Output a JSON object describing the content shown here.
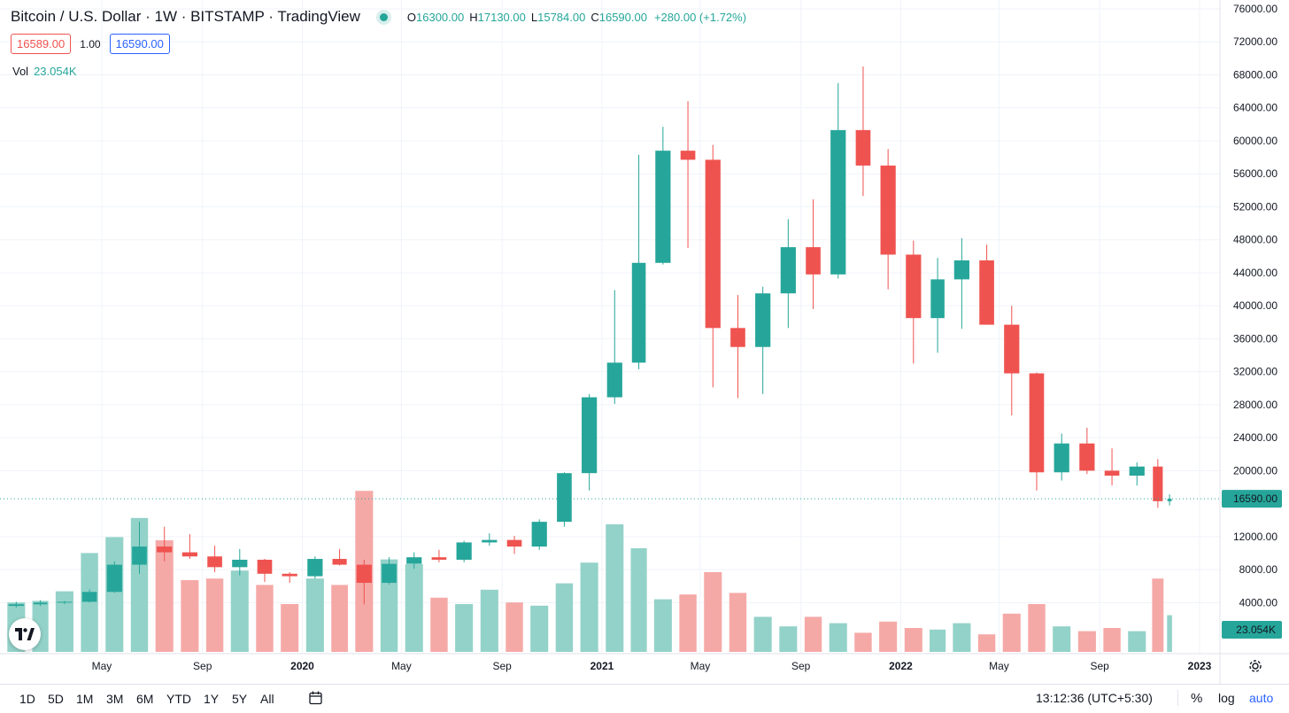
{
  "header": {
    "symbol_title": "Bitcoin / U.S. Dollar · 1W · BITSTAMP · TradingView",
    "ohlc": {
      "o_label": "O",
      "o": "16300.00",
      "h_label": "H",
      "h": "17130.00",
      "l_label": "L",
      "l": "15784.00",
      "c_label": "C",
      "c": "16590.00"
    },
    "change": "+280.00 (+1.72%)",
    "sell_price": "16589.00",
    "spread": "1.00",
    "buy_price": "16590.00",
    "vol_label": "Vol",
    "vol_value": "23.054K"
  },
  "price_tag": "16590.00",
  "volume_tag": "23.054K",
  "colors": {
    "up": "#26a69a",
    "down": "#ef5350",
    "vol_up": "#93d2c9",
    "vol_down": "#f5a9a7",
    "grid": "#f0f3fa",
    "accent": "#2962ff"
  },
  "bottom_bar": {
    "ranges": [
      "1D",
      "5D",
      "1M",
      "3M",
      "6M",
      "YTD",
      "1Y",
      "5Y",
      "All"
    ],
    "clock": "13:12:36 (UTC+5:30)",
    "percent": "%",
    "log": "log",
    "auto": "auto"
  },
  "icons": {
    "range_picker": "calendar-icon",
    "logo": "tradingview-logo-icon",
    "settings": "gear-icon"
  },
  "chart_data": {
    "type": "candlestick",
    "y_ticks": [
      "76000.00",
      "72000.00",
      "68000.00",
      "64000.00",
      "60000.00",
      "56000.00",
      "52000.00",
      "48000.00",
      "44000.00",
      "40000.00",
      "36000.00",
      "32000.00",
      "28000.00",
      "24000.00",
      "20000.00",
      "12000.00",
      "8000.00",
      "4000.00"
    ],
    "ylim": [
      0,
      77000
    ],
    "x_ticks": [
      {
        "label": "May",
        "date": "2019-05",
        "bold": false
      },
      {
        "label": "Sep",
        "date": "2019-09",
        "bold": false
      },
      {
        "label": "2020",
        "date": "2020-01",
        "bold": true
      },
      {
        "label": "May",
        "date": "2020-05",
        "bold": false
      },
      {
        "label": "Sep",
        "date": "2020-09",
        "bold": false
      },
      {
        "label": "2021",
        "date": "2021-01",
        "bold": true
      },
      {
        "label": "May",
        "date": "2021-05",
        "bold": false
      },
      {
        "label": "Sep",
        "date": "2021-09",
        "bold": false
      },
      {
        "label": "2022",
        "date": "2022-01",
        "bold": true
      },
      {
        "label": "May",
        "date": "2022-05",
        "bold": false
      },
      {
        "label": "Sep",
        "date": "2022-09",
        "bold": false
      },
      {
        "label": "2023",
        "date": "2023-01",
        "bold": true
      }
    ],
    "series": [
      {
        "type": "ohlc",
        "points": [
          {
            "date": "2019-01",
            "o": 3600,
            "h": 4100,
            "l": 3400,
            "c": 3800
          },
          {
            "date": "2019-02",
            "o": 3800,
            "h": 4300,
            "l": 3600,
            "c": 4000
          },
          {
            "date": "2019-03",
            "o": 4000,
            "h": 4200,
            "l": 3800,
            "c": 4100
          },
          {
            "date": "2019-04",
            "o": 4100,
            "h": 5600,
            "l": 4000,
            "c": 5300
          },
          {
            "date": "2019-05",
            "o": 5300,
            "h": 9000,
            "l": 5200,
            "c": 8600
          },
          {
            "date": "2019-06",
            "o": 8600,
            "h": 13800,
            "l": 7500,
            "c": 10800
          },
          {
            "date": "2019-07",
            "o": 10800,
            "h": 13200,
            "l": 9000,
            "c": 10100
          },
          {
            "date": "2019-08",
            "o": 10100,
            "h": 12300,
            "l": 9300,
            "c": 9600
          },
          {
            "date": "2019-09",
            "o": 9600,
            "h": 10900,
            "l": 7700,
            "c": 8300
          },
          {
            "date": "2019-10",
            "o": 8300,
            "h": 10500,
            "l": 7300,
            "c": 9200
          },
          {
            "date": "2019-11",
            "o": 9200,
            "h": 9300,
            "l": 6500,
            "c": 7500
          },
          {
            "date": "2019-12",
            "o": 7500,
            "h": 7700,
            "l": 6400,
            "c": 7200
          },
          {
            "date": "2020-01",
            "o": 7200,
            "h": 9600,
            "l": 6900,
            "c": 9300
          },
          {
            "date": "2020-02",
            "o": 9300,
            "h": 10500,
            "l": 8500,
            "c": 8600
          },
          {
            "date": "2020-03",
            "o": 8600,
            "h": 9200,
            "l": 3800,
            "c": 6400
          },
          {
            "date": "2020-04",
            "o": 6400,
            "h": 9500,
            "l": 6200,
            "c": 8700
          },
          {
            "date": "2020-05",
            "o": 8700,
            "h": 10100,
            "l": 8100,
            "c": 9500
          },
          {
            "date": "2020-06",
            "o": 9500,
            "h": 10400,
            "l": 8900,
            "c": 9200
          },
          {
            "date": "2020-07",
            "o": 9200,
            "h": 11500,
            "l": 8900,
            "c": 11300
          },
          {
            "date": "2020-08",
            "o": 11300,
            "h": 12400,
            "l": 10900,
            "c": 11600
          },
          {
            "date": "2020-09",
            "o": 11600,
            "h": 12100,
            "l": 9900,
            "c": 10800
          },
          {
            "date": "2020-10",
            "o": 10800,
            "h": 14100,
            "l": 10400,
            "c": 13800
          },
          {
            "date": "2020-11",
            "o": 13800,
            "h": 19800,
            "l": 13200,
            "c": 19700
          },
          {
            "date": "2020-12",
            "o": 19700,
            "h": 29300,
            "l": 17600,
            "c": 28900
          },
          {
            "date": "2021-01",
            "o": 28900,
            "h": 41900,
            "l": 28100,
            "c": 33100
          },
          {
            "date": "2021-02",
            "o": 33100,
            "h": 58300,
            "l": 32300,
            "c": 45200
          },
          {
            "date": "2021-03",
            "o": 45200,
            "h": 61700,
            "l": 45000,
            "c": 58800
          },
          {
            "date": "2021-04",
            "o": 58800,
            "h": 64800,
            "l": 47000,
            "c": 57700
          },
          {
            "date": "2021-05",
            "o": 57700,
            "h": 59500,
            "l": 30100,
            "c": 37300
          },
          {
            "date": "2021-06",
            "o": 37300,
            "h": 41300,
            "l": 28800,
            "c": 35000
          },
          {
            "date": "2021-07",
            "o": 35000,
            "h": 42300,
            "l": 29300,
            "c": 41500
          },
          {
            "date": "2021-08",
            "o": 41500,
            "h": 50500,
            "l": 37300,
            "c": 47100
          },
          {
            "date": "2021-09",
            "o": 47100,
            "h": 52900,
            "l": 39600,
            "c": 43800
          },
          {
            "date": "2021-10",
            "o": 43800,
            "h": 67000,
            "l": 43300,
            "c": 61300
          },
          {
            "date": "2021-11",
            "o": 61300,
            "h": 69000,
            "l": 53300,
            "c": 57000
          },
          {
            "date": "2021-12",
            "o": 57000,
            "h": 59000,
            "l": 42000,
            "c": 46200
          },
          {
            "date": "2022-01",
            "o": 46200,
            "h": 47900,
            "l": 33000,
            "c": 38500
          },
          {
            "date": "2022-02",
            "o": 38500,
            "h": 45800,
            "l": 34300,
            "c": 43200
          },
          {
            "date": "2022-03",
            "o": 43200,
            "h": 48200,
            "l": 37200,
            "c": 45500
          },
          {
            "date": "2022-04",
            "o": 45500,
            "h": 47400,
            "l": 37700,
            "c": 37700
          },
          {
            "date": "2022-05",
            "o": 37700,
            "h": 40000,
            "l": 26700,
            "c": 31800
          },
          {
            "date": "2022-06",
            "o": 31800,
            "h": 31900,
            "l": 17600,
            "c": 19800
          },
          {
            "date": "2022-07",
            "o": 19800,
            "h": 24500,
            "l": 18800,
            "c": 23300
          },
          {
            "date": "2022-08",
            "o": 23300,
            "h": 25200,
            "l": 19600,
            "c": 20000
          },
          {
            "date": "2022-09",
            "o": 20000,
            "h": 22700,
            "l": 18200,
            "c": 19400
          },
          {
            "date": "2022-10",
            "o": 19400,
            "h": 21000,
            "l": 18200,
            "c": 20500
          },
          {
            "date": "2022-11",
            "o": 20500,
            "h": 21400,
            "l": 15500,
            "c": 16300
          },
          {
            "date": "2022-11-21",
            "o": 16300,
            "h": 17130,
            "l": 15784,
            "c": 16590
          }
        ]
      },
      {
        "type": "volume",
        "points": [
          {
            "date": "2019-01",
            "v": 3.1
          },
          {
            "date": "2019-02",
            "v": 3.2
          },
          {
            "date": "2019-03",
            "v": 3.8
          },
          {
            "date": "2019-04",
            "v": 6.2
          },
          {
            "date": "2019-05",
            "v": 7.2
          },
          {
            "date": "2019-06",
            "v": 8.4
          },
          {
            "date": "2019-07",
            "v": 7.0
          },
          {
            "date": "2019-08",
            "v": 4.5
          },
          {
            "date": "2019-09",
            "v": 4.6
          },
          {
            "date": "2019-10",
            "v": 5.1
          },
          {
            "date": "2019-11",
            "v": 4.2
          },
          {
            "date": "2019-12",
            "v": 3.0
          },
          {
            "date": "2020-01",
            "v": 4.6
          },
          {
            "date": "2020-02",
            "v": 4.2
          },
          {
            "date": "2020-03",
            "v": 10.1
          },
          {
            "date": "2020-04",
            "v": 5.8
          },
          {
            "date": "2020-05",
            "v": 5.5
          },
          {
            "date": "2020-06",
            "v": 3.4
          },
          {
            "date": "2020-07",
            "v": 3.0
          },
          {
            "date": "2020-08",
            "v": 3.9
          },
          {
            "date": "2020-09",
            "v": 3.1
          },
          {
            "date": "2020-10",
            "v": 2.9
          },
          {
            "date": "2020-11",
            "v": 4.3
          },
          {
            "date": "2020-12",
            "v": 5.6
          },
          {
            "date": "2021-01",
            "v": 8.0
          },
          {
            "date": "2021-02",
            "v": 6.5
          },
          {
            "date": "2021-03",
            "v": 3.3
          },
          {
            "date": "2021-04",
            "v": 3.6
          },
          {
            "date": "2021-05",
            "v": 5.0
          },
          {
            "date": "2021-06",
            "v": 3.7
          },
          {
            "date": "2021-07",
            "v": 2.2
          },
          {
            "date": "2021-08",
            "v": 1.6
          },
          {
            "date": "2021-09",
            "v": 2.2
          },
          {
            "date": "2021-10",
            "v": 1.8
          },
          {
            "date": "2021-11",
            "v": 1.2
          },
          {
            "date": "2021-12",
            "v": 1.9
          },
          {
            "date": "2022-01",
            "v": 1.5
          },
          {
            "date": "2022-02",
            "v": 1.4
          },
          {
            "date": "2022-03",
            "v": 1.8
          },
          {
            "date": "2022-04",
            "v": 1.1
          },
          {
            "date": "2022-05",
            "v": 2.4
          },
          {
            "date": "2022-06",
            "v": 3.0
          },
          {
            "date": "2022-07",
            "v": 1.6
          },
          {
            "date": "2022-08",
            "v": 1.3
          },
          {
            "date": "2022-09",
            "v": 1.5
          },
          {
            "date": "2022-10",
            "v": 1.3
          },
          {
            "date": "2022-11",
            "v": 4.6
          },
          {
            "date": "2022-11-21",
            "v": 2.3
          }
        ]
      }
    ]
  }
}
